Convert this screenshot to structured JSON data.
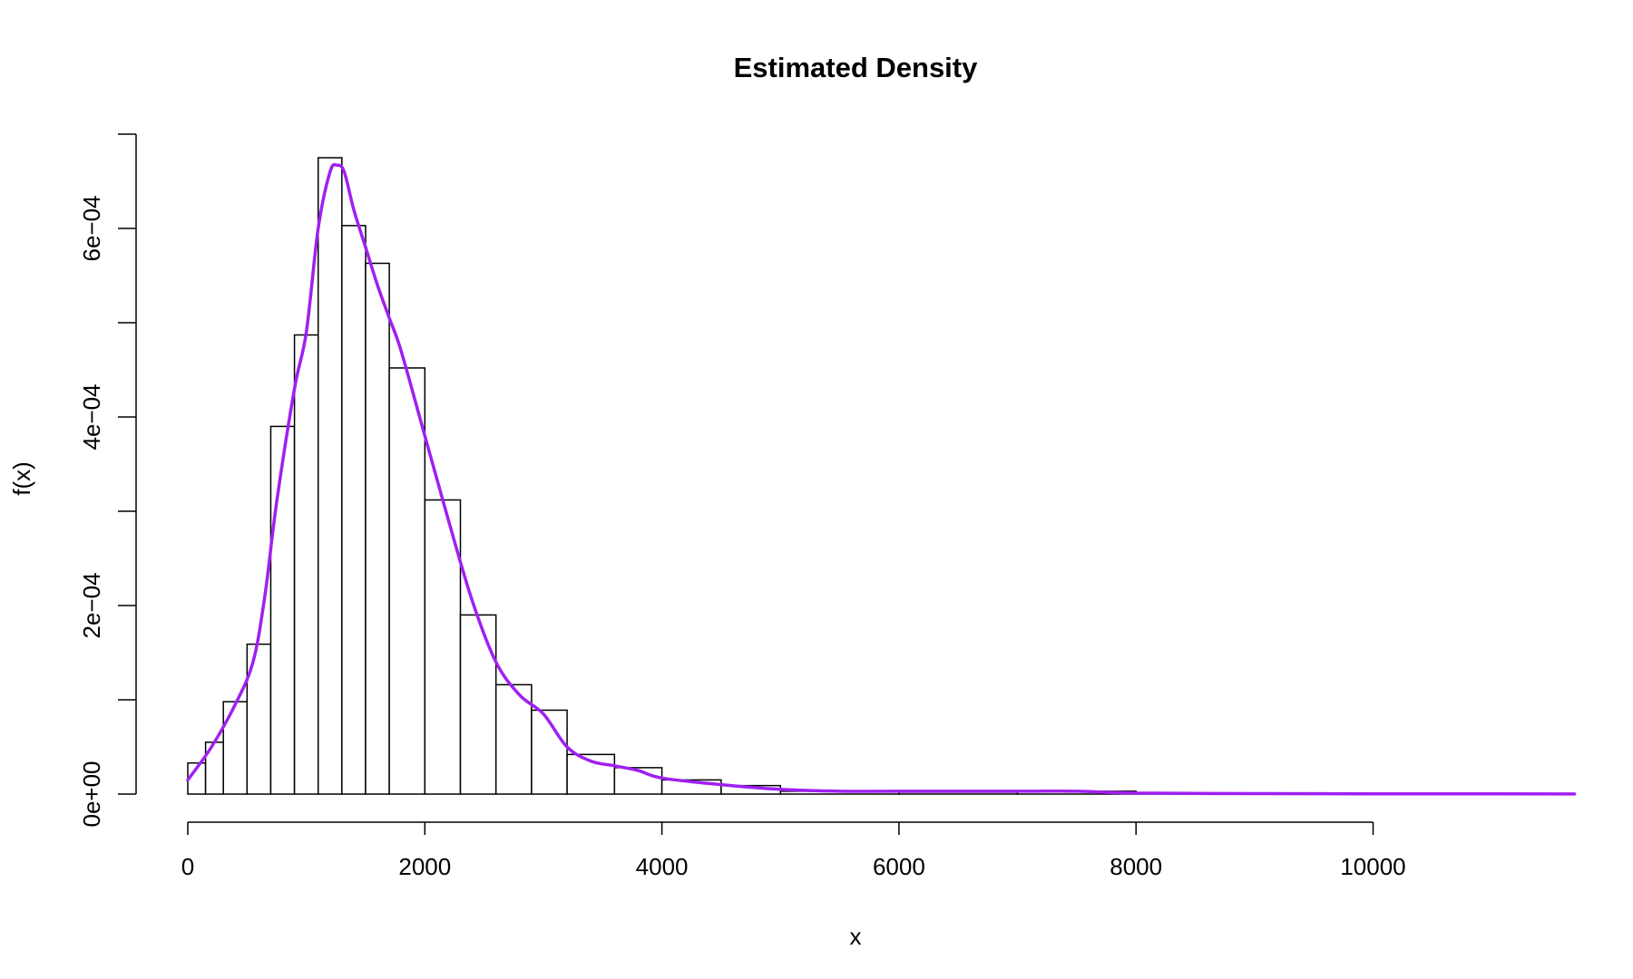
{
  "chart_data": {
    "type": "bar",
    "title": "Estimated Density",
    "xlabel": "x",
    "ylabel": "f(x)",
    "xlim": [
      0,
      11700
    ],
    "ylim": [
      0,
      0.0007
    ],
    "x_ticks": [
      0,
      2000,
      4000,
      6000,
      8000,
      10000
    ],
    "x_tick_labels": [
      "0",
      "2000",
      "4000",
      "6000",
      "8000",
      "10000"
    ],
    "y_ticks": [
      0,
      0.0001,
      0.0002,
      0.0003,
      0.0004,
      0.0005,
      0.0006,
      0.0007
    ],
    "y_tick_labels": [
      "0e+00",
      "",
      "2e−04",
      "",
      "4e−04",
      "",
      "6e−04",
      ""
    ],
    "histogram": {
      "bins": [
        [
          0,
          150,
          3.3e-05
        ],
        [
          150,
          300,
          5.5e-05
        ],
        [
          300,
          500,
          9.8e-05
        ],
        [
          500,
          700,
          0.000159
        ],
        [
          700,
          900,
          0.00039
        ],
        [
          900,
          1100,
          0.000487
        ],
        [
          1100,
          1300,
          0.000675
        ],
        [
          1300,
          1500,
          0.000603
        ],
        [
          1500,
          1700,
          0.000563
        ],
        [
          1700,
          2000,
          0.000452
        ],
        [
          2000,
          2300,
          0.000312
        ],
        [
          2300,
          2600,
          0.00019
        ],
        [
          2600,
          2900,
          0.000116
        ],
        [
          2900,
          3200,
          8.9e-05
        ],
        [
          3200,
          3600,
          4.2e-05
        ],
        [
          3600,
          4000,
          2.8e-05
        ],
        [
          4000,
          4500,
          1.5e-05
        ],
        [
          4500,
          5000,
          9e-06
        ],
        [
          5000,
          6000,
          3e-06
        ],
        [
          6000,
          7000,
          2e-06
        ],
        [
          7000,
          8000,
          3e-06
        ],
        [
          8000,
          9000,
          1e-06
        ],
        [
          9000,
          10000,
          5e-07
        ]
      ]
    },
    "density_curve": {
      "color": "#a020f0",
      "x": [
        0,
        200,
        400,
        550,
        650,
        750,
        900,
        1000,
        1100,
        1200,
        1260,
        1320,
        1400,
        1500,
        1600,
        1700,
        1800,
        2000,
        2200,
        2400,
        2600,
        2800,
        3000,
        3200,
        3400,
        3600,
        3800,
        4000,
        4500,
        5000,
        5500,
        6000,
        7000,
        7500,
        8000,
        9000,
        10000,
        11000,
        11700
      ],
      "y": [
        1.5e-05,
        5e-05,
        9.5e-05,
        0.00014,
        0.00021,
        0.00031,
        0.00043,
        0.00049,
        0.0006,
        0.00066,
        0.000667,
        0.00066,
        0.00062,
        0.00058,
        0.00054,
        0.000505,
        0.00047,
        0.00038,
        0.00029,
        0.000205,
        0.00014,
        0.000105,
        8.5e-05,
        5e-05,
        3.5e-05,
        3e-05,
        2.5e-05,
        1.7e-05,
        1e-05,
        5e-06,
        3e-06,
        3e-06,
        3e-06,
        3e-06,
        1e-06,
        5e-07,
        3e-07,
        2e-07,
        1e-07
      ]
    }
  }
}
